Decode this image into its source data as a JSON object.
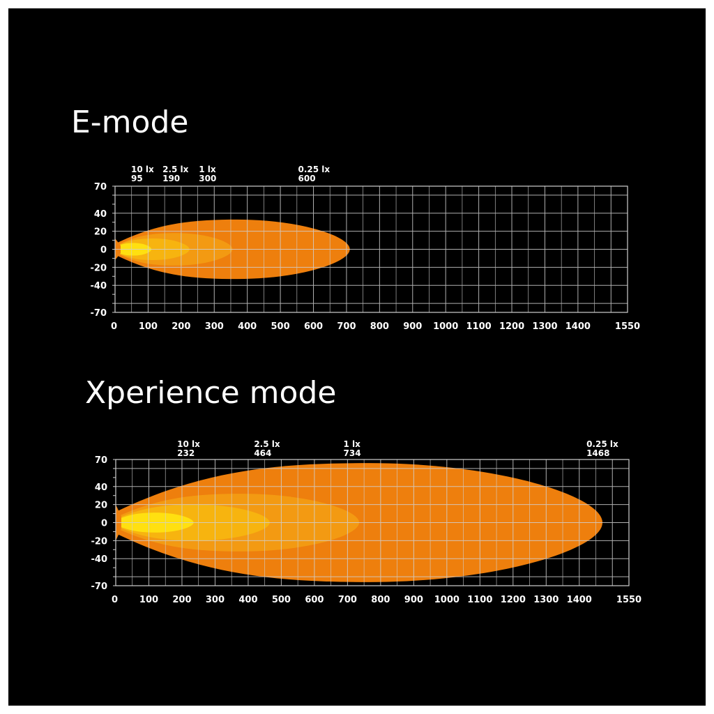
{
  "colors": {
    "background": "#000000",
    "grid": "#d0d0d0",
    "text": "#ffffff",
    "zone_025": "#ee7f0d",
    "zone_1": "#f39a12",
    "zone_25": "#f7b40f",
    "zone_10": "#ffe010"
  },
  "chart_data": [
    {
      "type": "area",
      "title": "E-mode",
      "xlabel": "",
      "ylabel": "",
      "xlim": [
        0,
        1550
      ],
      "ylim": [
        -70,
        70
      ],
      "x_ticks": [
        "0",
        "100",
        "200",
        "300",
        "400",
        "500",
        "600",
        "700",
        "800",
        "900",
        "1000",
        "1100",
        "1200",
        "1300",
        "1400",
        "1550"
      ],
      "y_ticks": [
        "70",
        "40",
        "20",
        "0",
        "-20",
        "-40",
        "-70"
      ],
      "grid": true,
      "zones": [
        {
          "name": "0.25 lx",
          "distance": "600",
          "reach": 710,
          "half_width": 33
        },
        {
          "name": "1 lx",
          "distance": "300",
          "reach": 355,
          "half_width": 18
        },
        {
          "name": "2.5 lx",
          "distance": "190",
          "reach": 225,
          "half_width": 12
        },
        {
          "name": "10 lx",
          "distance": "95",
          "reach": 110,
          "half_width": 7
        }
      ]
    },
    {
      "type": "area",
      "title": "Xperience mode",
      "xlabel": "",
      "ylabel": "",
      "xlim": [
        0,
        1550
      ],
      "ylim": [
        -70,
        70
      ],
      "x_ticks": [
        "0",
        "100",
        "200",
        "300",
        "400",
        "500",
        "600",
        "700",
        "800",
        "900",
        "1000",
        "1100",
        "1200",
        "1300",
        "1400",
        "1550"
      ],
      "y_ticks": [
        "70",
        "40",
        "20",
        "0",
        "-20",
        "-40",
        "-70"
      ],
      "grid": true,
      "zones": [
        {
          "name": "0.25 lx",
          "distance": "1468",
          "reach": 1470,
          "half_width": 66
        },
        {
          "name": "1 lx",
          "distance": "734",
          "reach": 735,
          "half_width": 32
        },
        {
          "name": "2.5 lx",
          "distance": "464",
          "reach": 465,
          "half_width": 20
        },
        {
          "name": "10 lx",
          "distance": "232",
          "reach": 235,
          "half_width": 11
        }
      ]
    }
  ]
}
